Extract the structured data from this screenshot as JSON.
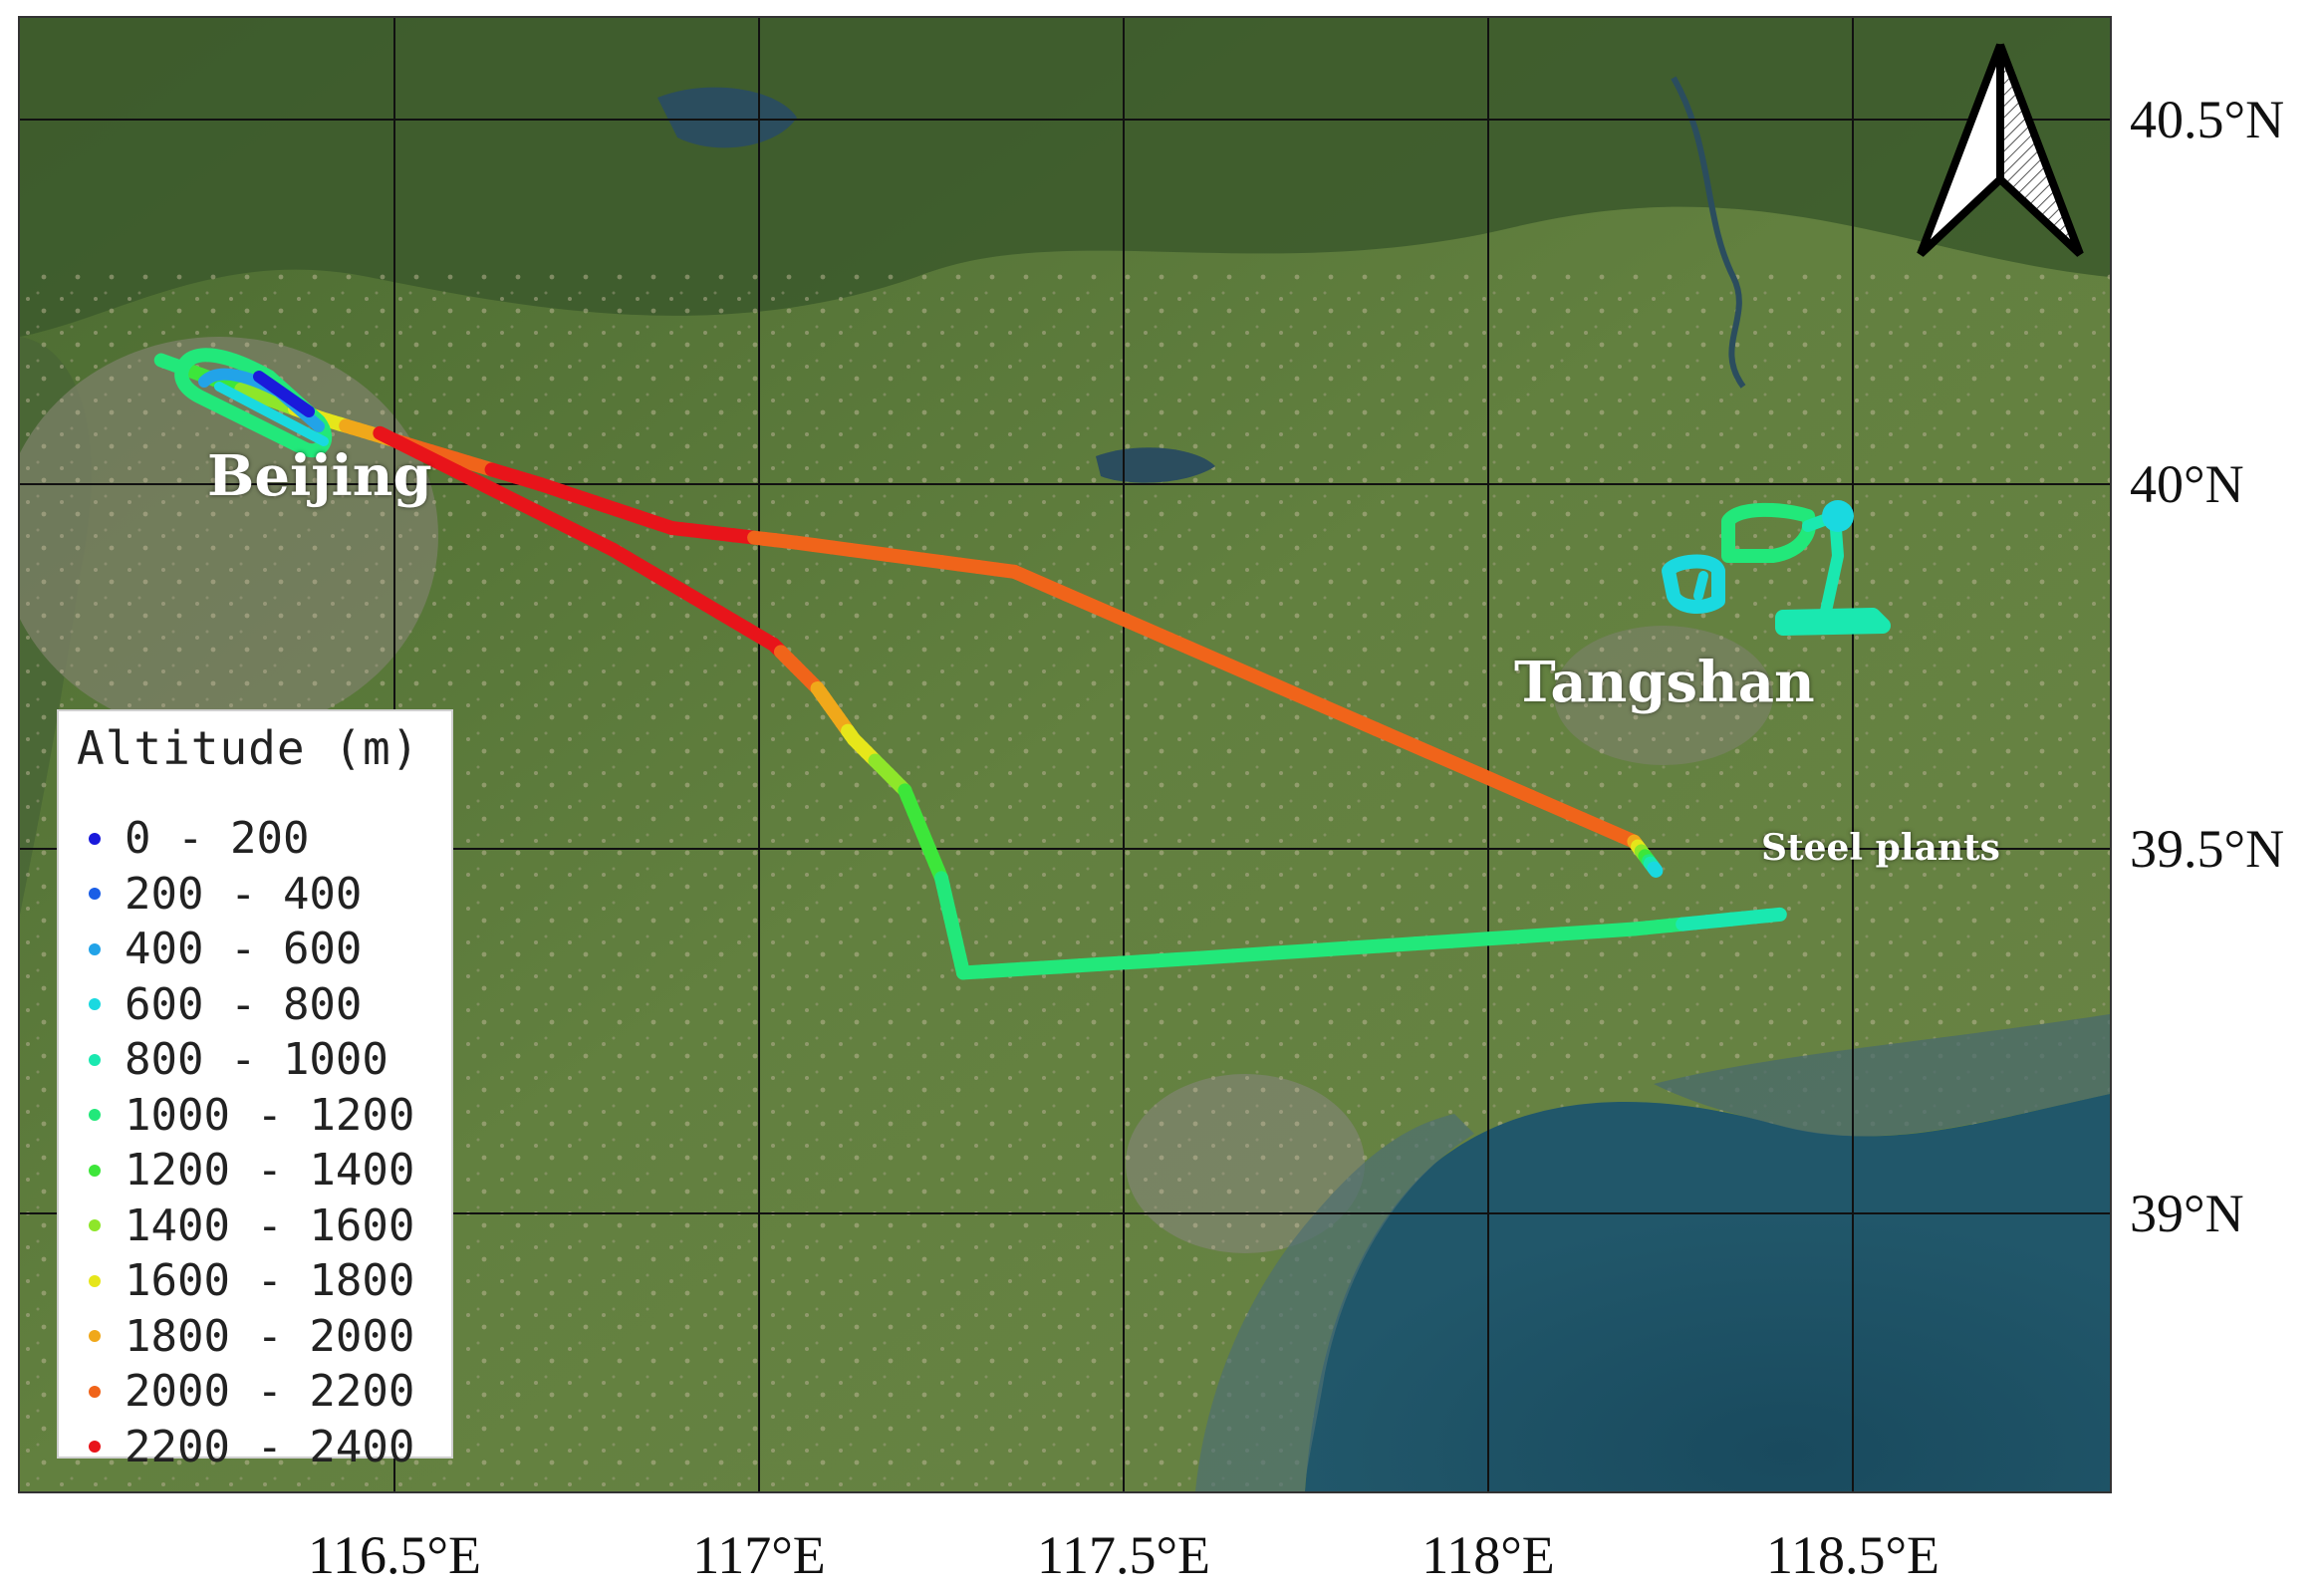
{
  "map": {
    "lat_labels": [
      {
        "text": "40.5°N",
        "lat": 40.5
      },
      {
        "text": "40°N",
        "lat": 40.0
      },
      {
        "text": "39.5°N",
        "lat": 39.5
      },
      {
        "text": "39°N",
        "lat": 39.0
      }
    ],
    "lon_labels": [
      {
        "text": "116.5°E",
        "lon": 116.5
      },
      {
        "text": "117°E",
        "lon": 117.0
      },
      {
        "text": "117.5°E",
        "lon": 117.5
      },
      {
        "text": "118°E",
        "lon": 118.0
      },
      {
        "text": "118.5°E",
        "lon": 118.5
      }
    ],
    "places": {
      "beijing": "Beijing",
      "tangshan": "Tangshan",
      "steel_plants": "Steel plants"
    },
    "colors": {
      "land": "#5d7a3c",
      "land_dark": "#3f5a2a",
      "mountain": "#3d5b2c",
      "city": "#8a8a7a",
      "sea": "#21576a",
      "sea_deep": "#194a5e",
      "grid": "#111111"
    }
  },
  "legend": {
    "title": "Altitude (m)",
    "items": [
      {
        "label": "0 - 200",
        "color": "#1a1adb"
      },
      {
        "label": "200 - 400",
        "color": "#1a5ee6"
      },
      {
        "label": "400 - 600",
        "color": "#22a3e8"
      },
      {
        "label": "600 - 800",
        "color": "#1ad9e0"
      },
      {
        "label": "800 - 1000",
        "color": "#1ae8b0"
      },
      {
        "label": "1000 - 1200",
        "color": "#22e87a"
      },
      {
        "label": "1200 - 1400",
        "color": "#3de63a"
      },
      {
        "label": "1400 - 1600",
        "color": "#8ee62a"
      },
      {
        "label": "1600 - 1800",
        "color": "#e6e61a"
      },
      {
        "label": "1800 - 2000",
        "color": "#f0a81a"
      },
      {
        "label": "2000 - 2200",
        "color": "#f0641a"
      },
      {
        "label": "2200 - 2400",
        "color": "#e8141a"
      }
    ]
  },
  "flight_track": [
    {
      "lon": 116.18,
      "lat": 40.17,
      "alt": 1100
    },
    {
      "lon": 116.4,
      "lat": 40.09,
      "alt": 1700
    },
    {
      "lon": 116.5,
      "lat": 40.06,
      "alt": 2000
    },
    {
      "lon": 116.7,
      "lat": 40.0,
      "alt": 2300
    },
    {
      "lon": 116.88,
      "lat": 39.94,
      "alt": 2300
    },
    {
      "lon": 117.05,
      "lat": 39.92,
      "alt": 2150
    },
    {
      "lon": 117.35,
      "lat": 39.88,
      "alt": 2100
    },
    {
      "lon": 118.2,
      "lat": 39.51,
      "alt": 2050
    },
    {
      "lon": 118.23,
      "lat": 39.47,
      "alt": 700
    }
  ],
  "flight_track_return": [
    {
      "lon": 116.48,
      "lat": 40.07,
      "alt": 2250
    },
    {
      "lon": 116.8,
      "lat": 39.91,
      "alt": 2300
    },
    {
      "lon": 117.02,
      "lat": 39.78,
      "alt": 2250
    },
    {
      "lon": 117.08,
      "lat": 39.72,
      "alt": 2000
    },
    {
      "lon": 117.13,
      "lat": 39.65,
      "alt": 1750
    },
    {
      "lon": 117.2,
      "lat": 39.58,
      "alt": 1400
    },
    {
      "lon": 117.25,
      "lat": 39.46,
      "alt": 1200
    },
    {
      "lon": 117.28,
      "lat": 39.33,
      "alt": 1100
    },
    {
      "lon": 117.6,
      "lat": 39.35,
      "alt": 1050
    },
    {
      "lon": 118.2,
      "lat": 39.39,
      "alt": 1050
    },
    {
      "lon": 118.4,
      "lat": 39.41,
      "alt": 900
    }
  ]
}
